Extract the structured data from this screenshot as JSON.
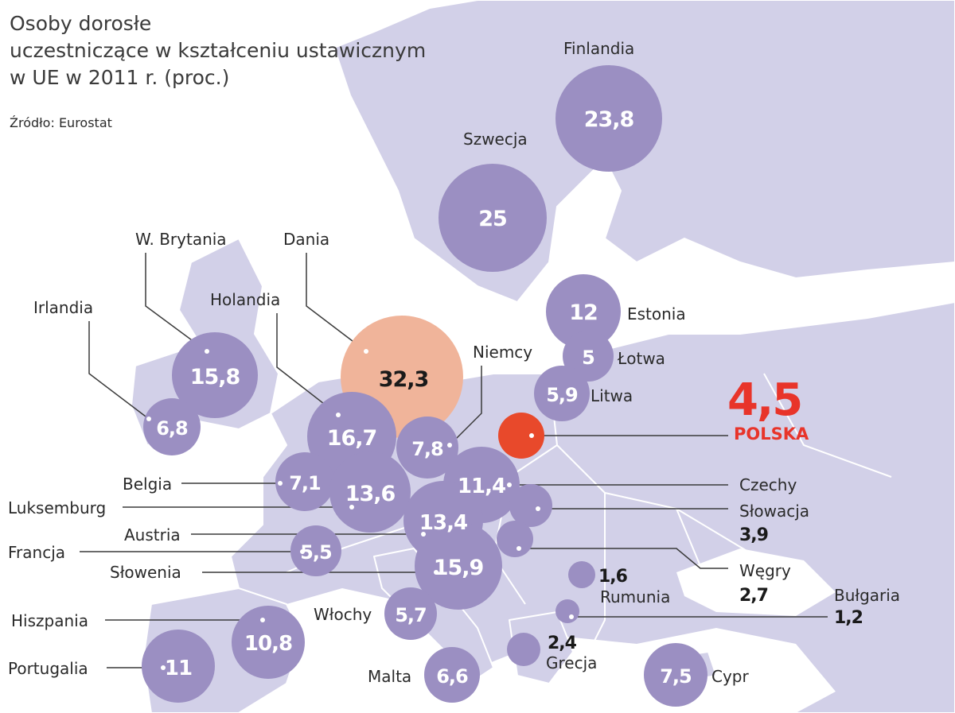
{
  "title": {
    "line1": "Osoby dorosłe",
    "line2": "uczestniczące w kształceniu ustawicznym",
    "line3": "w UE w 2011 r. (proc.)"
  },
  "source": "Źródło: Eurostat",
  "colors": {
    "land": "#d2d0e8",
    "land_border": "#ffffff",
    "bubble": "#9b8fc2",
    "bubble_top": "#f0b49a",
    "bubble_poland": "#e8492b",
    "poland_text": "#e8342a",
    "leader": "#3a3a3a"
  },
  "poland": {
    "value": "4,5",
    "label": "POLSKA"
  },
  "countries": [
    {
      "name": "Finlandia",
      "value": 23.8,
      "value_label": "23,8"
    },
    {
      "name": "Szwecja",
      "value": 25,
      "value_label": "25"
    },
    {
      "name": "Dania",
      "value": 32.3,
      "value_label": "32,3"
    },
    {
      "name": "W. Brytania",
      "value": 15.8,
      "value_label": "15,8"
    },
    {
      "name": "Irlandia",
      "value": 6.8,
      "value_label": "6,8"
    },
    {
      "name": "Holandia",
      "value": 16.7,
      "value_label": "16,7"
    },
    {
      "name": "Niemcy",
      "value": 7.8,
      "value_label": "7,8"
    },
    {
      "name": "Estonia",
      "value": 12,
      "value_label": "12"
    },
    {
      "name": "Łotwa",
      "value": 5,
      "value_label": "5"
    },
    {
      "name": "Litwa",
      "value": 5.9,
      "value_label": "5,9"
    },
    {
      "name": "Belgia",
      "value": 7.1,
      "value_label": "7,1"
    },
    {
      "name": "Luksemburg",
      "value": 13.6,
      "value_label": "13,6"
    },
    {
      "name": "Czechy",
      "value": 11.4,
      "value_label": "11,4"
    },
    {
      "name": "Słowacja",
      "value": 3.9,
      "value_label": "3,9"
    },
    {
      "name": "Austria",
      "value": 13.4,
      "value_label": "13,4"
    },
    {
      "name": "Francja",
      "value": 5.5,
      "value_label": "5,5"
    },
    {
      "name": "Słowenia",
      "value": 15.9,
      "value_label": "15,9"
    },
    {
      "name": "Węgry",
      "value": 2.7,
      "value_label": "2,7"
    },
    {
      "name": "Rumunia",
      "value": 1.6,
      "value_label": "1,6"
    },
    {
      "name": "Bułgaria",
      "value": 1.2,
      "value_label": "1,2"
    },
    {
      "name": "Włochy",
      "value": 5.7,
      "value_label": "5,7"
    },
    {
      "name": "Hiszpania",
      "value": 10.8,
      "value_label": "10,8"
    },
    {
      "name": "Grecja",
      "value": 2.4,
      "value_label": "2,4"
    },
    {
      "name": "Portugalia",
      "value": 11,
      "value_label": "11"
    },
    {
      "name": "Malta",
      "value": 6.6,
      "value_label": "6,6"
    },
    {
      "name": "Cypr",
      "value": 7.5,
      "value_label": "7,5"
    }
  ]
}
